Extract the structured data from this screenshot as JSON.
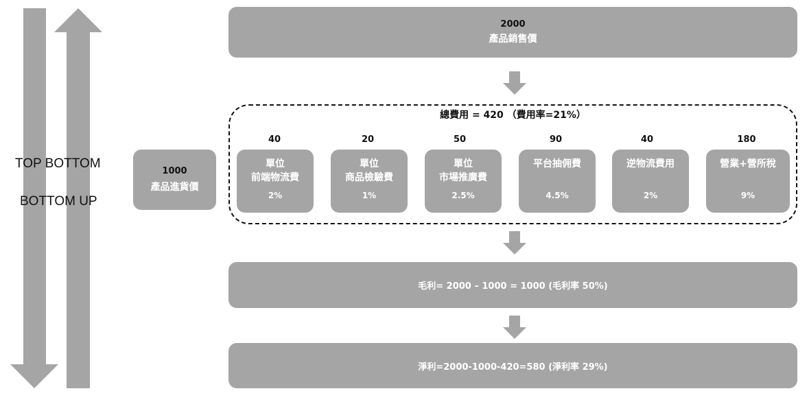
{
  "sidebar": {
    "label_top": "TOP BOTTOM",
    "label_bottom": "BOTTOM UP"
  },
  "sale": {
    "value": "2000",
    "label": "產品銷售價"
  },
  "purchase": {
    "value": "1000",
    "label": "產品進貨價"
  },
  "expenses": {
    "title": "總費用 = 420 （費用率=21%）",
    "items": [
      {
        "amount": "40",
        "line1": "單位",
        "line2": "前端物流費",
        "rate": "2%"
      },
      {
        "amount": "20",
        "line1": "單位",
        "line2": "商品檢驗費",
        "rate": "1%"
      },
      {
        "amount": "50",
        "line1": "單位",
        "line2": "市場推廣費",
        "rate": "2.5%"
      },
      {
        "amount": "90",
        "line1": "平台抽佣費",
        "line2": "",
        "rate": "4.5%"
      },
      {
        "amount": "40",
        "line1": "逆物流費用",
        "line2": "",
        "rate": "2%"
      },
      {
        "amount": "180",
        "line1": "營業+營所稅",
        "line2": "",
        "rate": "9%"
      }
    ]
  },
  "gross_profit": {
    "text": "毛利= 2000 – 1000 = 1000 (毛利率 50%)"
  },
  "net_profit": {
    "text": "淨利=2000-1000-420=580 (淨利率 29%)"
  },
  "colors": {
    "box": "#a5a5a5",
    "arrow": "#a5a5a5",
    "text_on_box": "#ffffff"
  }
}
